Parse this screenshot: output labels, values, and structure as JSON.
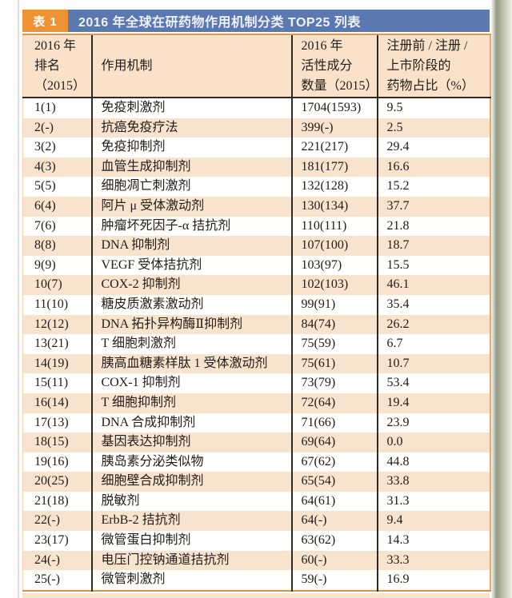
{
  "title_bar": {
    "badge": "表 1",
    "title": "2016 年全球在研药物作用机制分类 TOP25 列表"
  },
  "colors": {
    "title_bar_blue": "#5b79b0",
    "badge_orange": "#ed9333",
    "header_peach": "#f9e2c9",
    "row_stripe_peach": "#f8e3ce",
    "border_tan": "#d9944c",
    "divider_dark": "#2e2a24"
  },
  "table": {
    "headers": {
      "rank": "2016 年\n排名\n（2015）",
      "mechanism": "作用机制",
      "count": "2016 年\n活性成分\n数量（2015）",
      "share": "注册前 / 注册 /\n上市阶段的\n药物占比（%）"
    },
    "rows": [
      {
        "rank": "1(1)",
        "mechanism": "免疫刺激剂",
        "count": "1704(1593)",
        "share": "9.5"
      },
      {
        "rank": "2(-)",
        "mechanism": "抗癌免疫疗法",
        "count": "399(-)",
        "share": "2.5"
      },
      {
        "rank": "3(2)",
        "mechanism": "免疫抑制剂",
        "count": "221(217)",
        "share": "29.4"
      },
      {
        "rank": "4(3)",
        "mechanism": "血管生成抑制剂",
        "count": "181(177)",
        "share": "16.6"
      },
      {
        "rank": "5(5)",
        "mechanism": "细胞凋亡刺激剂",
        "count": "132(128)",
        "share": "15.2"
      },
      {
        "rank": "6(4)",
        "mechanism": "阿片 μ 受体激动剂",
        "count": "130(134)",
        "share": "37.7"
      },
      {
        "rank": "7(6)",
        "mechanism": "肿瘤坏死因子-α 拮抗剂",
        "count": "110(111)",
        "share": "21.8"
      },
      {
        "rank": "8(8)",
        "mechanism": "DNA 抑制剂",
        "count": "107(100)",
        "share": "18.7"
      },
      {
        "rank": "9(9)",
        "mechanism": "VEGF 受体拮抗剂",
        "count": "103(97)",
        "share": "15.5"
      },
      {
        "rank": "10(7)",
        "mechanism": "COX-2 抑制剂",
        "count": "102(103)",
        "share": "46.1"
      },
      {
        "rank": "11(10)",
        "mechanism": "糖皮质激素激动剂",
        "count": "99(91)",
        "share": "35.4"
      },
      {
        "rank": "12(12)",
        "mechanism": "DNA 拓扑异构酶Ⅱ抑制剂",
        "count": "84(74)",
        "share": "26.2"
      },
      {
        "rank": "13(21)",
        "mechanism": "T 细胞刺激剂",
        "count": "75(59)",
        "share": "6.7"
      },
      {
        "rank": "14(19)",
        "mechanism": "胰高血糖素样肽 1 受体激动剂",
        "count": "75(61)",
        "share": "10.7"
      },
      {
        "rank": "15(11)",
        "mechanism": "COX-1 抑制剂",
        "count": "73(79)",
        "share": "53.4"
      },
      {
        "rank": "16(14)",
        "mechanism": "T 细胞抑制剂",
        "count": "72(64)",
        "share": "19.4"
      },
      {
        "rank": "17(13)",
        "mechanism": "DNA 合成抑制剂",
        "count": "71(66)",
        "share": "23.9"
      },
      {
        "rank": "18(15)",
        "mechanism": "基因表达抑制剂",
        "count": "69(64)",
        "share": "0.0"
      },
      {
        "rank": "19(16)",
        "mechanism": "胰岛素分泌类似物",
        "count": "67(62)",
        "share": "44.8"
      },
      {
        "rank": "20(25)",
        "mechanism": "细胞壁合成抑制剂",
        "count": "65(54)",
        "share": "33.8"
      },
      {
        "rank": "21(18)",
        "mechanism": "脱敏剂",
        "count": "64(61)",
        "share": "31.3"
      },
      {
        "rank": "22(-)",
        "mechanism": "ErbB-2 拮抗剂",
        "count": "64(-)",
        "share": "9.4"
      },
      {
        "rank": "23(17)",
        "mechanism": "微管蛋白抑制剂",
        "count": "63(62)",
        "share": "14.3"
      },
      {
        "rank": "24(-)",
        "mechanism": "电压门控钠通道拮抗剂",
        "count": "60(-)",
        "share": "33.3"
      },
      {
        "rank": "25(-)",
        "mechanism": "微管刺激剂",
        "count": "59(-)",
        "share": "16.9"
      }
    ]
  }
}
